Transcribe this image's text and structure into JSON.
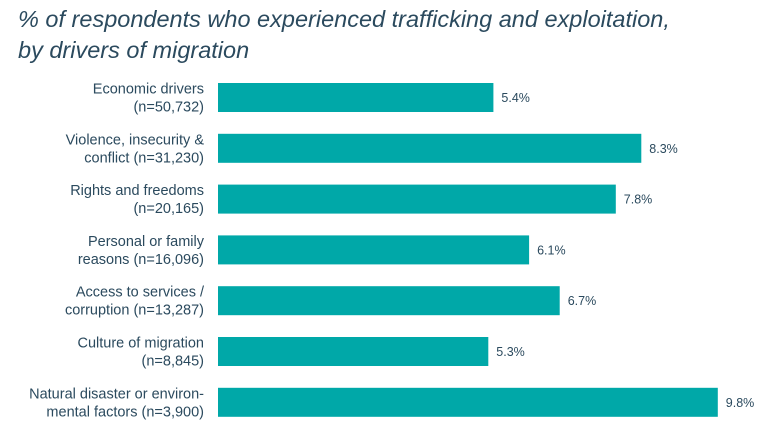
{
  "chart_data": {
    "type": "bar",
    "orientation": "horizontal",
    "title": "% of respondents who experienced trafficking and exploitation, by drivers of migration",
    "categories": [
      [
        "Economic drivers",
        "(n=50,732)"
      ],
      [
        "Violence, insecurity &",
        "conflict (n=31,230)"
      ],
      [
        "Rights and freedoms",
        "(n=20,165)"
      ],
      [
        "Personal or family",
        "reasons (n=16,096)"
      ],
      [
        "Access to  services /",
        "corruption (n=13,287)"
      ],
      [
        "Culture of migration",
        "(n=8,845)"
      ],
      [
        "Natural disaster or environ-",
        "mental factors (n=3,900)"
      ]
    ],
    "values": [
      5.4,
      8.3,
      7.8,
      6.1,
      6.7,
      5.3,
      9.8
    ],
    "value_labels": [
      "5.4%",
      "8.3%",
      "7.8%",
      "6.1%",
      "6.7%",
      "5.3%",
      "9.8%"
    ],
    "xlim": [
      0,
      10
    ],
    "grid": false,
    "legend": "none",
    "colors": {
      "bar": "#00a8a8",
      "text": "#2b4a5e"
    }
  }
}
